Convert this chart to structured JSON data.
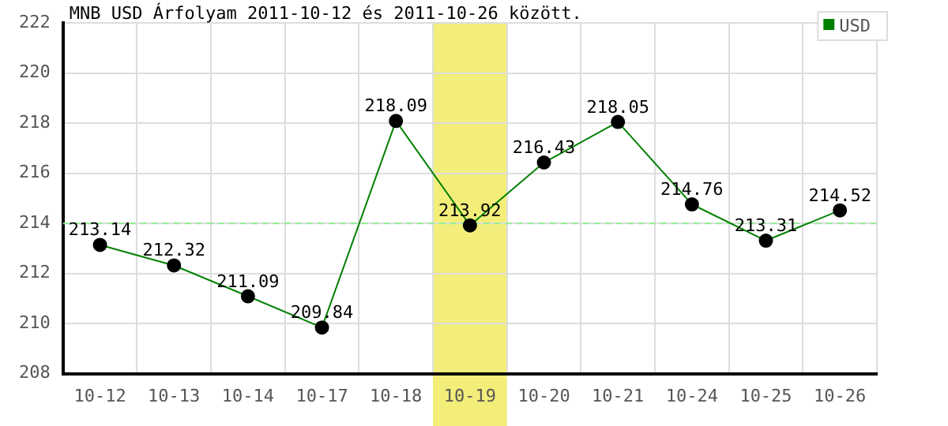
{
  "chart_data": {
    "type": "line",
    "title": "MNB USD Árfolyam 2011-10-12 és 2011-10-26 között.",
    "categories": [
      "10-12",
      "10-13",
      "10-14",
      "10-17",
      "10-18",
      "10-19",
      "10-20",
      "10-21",
      "10-24",
      "10-25",
      "10-26"
    ],
    "series": [
      {
        "name": "USD",
        "color": "#008000",
        "values": [
          213.14,
          212.32,
          211.09,
          209.84,
          218.09,
          213.92,
          216.43,
          218.05,
          214.76,
          213.31,
          214.52
        ]
      }
    ],
    "ylim": [
      208,
      222
    ],
    "yticks": [
      208,
      210,
      212,
      214,
      216,
      218,
      220,
      222
    ],
    "grid": true,
    "legend": "top right",
    "marker": "circle",
    "line_style": "solid",
    "data_labels": true,
    "ref_lines": [
      {
        "axis": "y",
        "value": 214,
        "color": "#90ee90",
        "line_style": "dashed"
      }
    ],
    "bands": [
      {
        "axis": "x",
        "from": "10-19",
        "to": "10-19",
        "color": "#f3ee7a"
      }
    ]
  }
}
